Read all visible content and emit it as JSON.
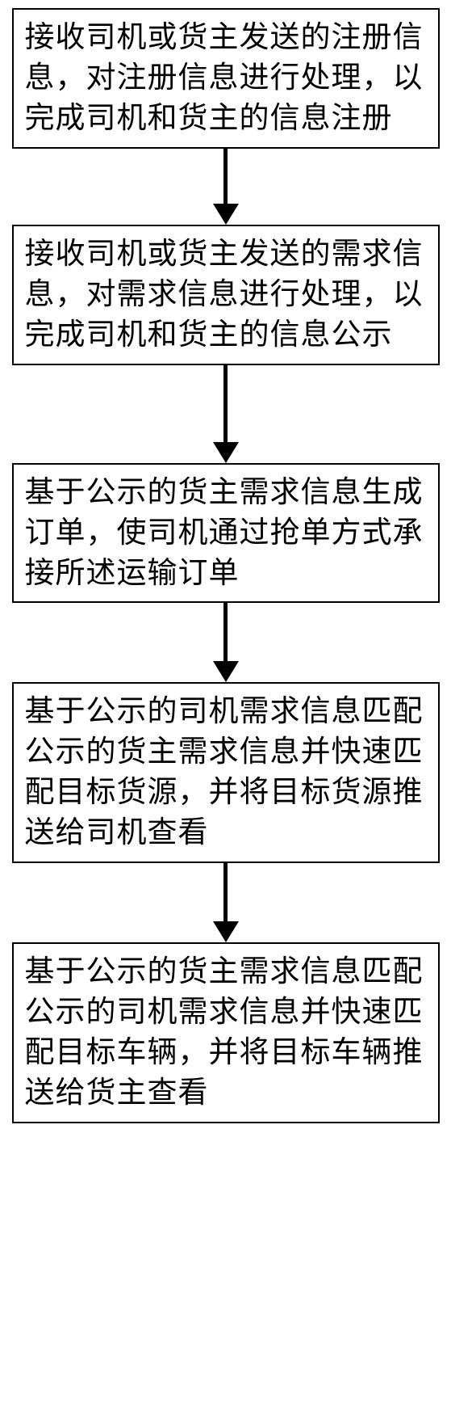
{
  "flowchart": {
    "type": "flowchart",
    "direction": "vertical",
    "background_color": "#ffffff",
    "node_border_color": "#000000",
    "node_border_width": 2,
    "node_fill": "#ffffff",
    "text_color": "#000000",
    "font_size_pt": 28,
    "arrow_color": "#000000",
    "arrow_shaft_width": 5,
    "arrow_head_width": 32,
    "arrow_head_height": 26,
    "nodes": [
      {
        "id": "n1",
        "text": "接收司机或货主发送的注册信息，对注册信息进行处理，以完成司机和货主的信息注册",
        "arrow_shaft_height": 68
      },
      {
        "id": "n2",
        "text": "接收司机或货主发送的需求信息，对需求信息进行处理，以完成司机和货主的信息公示",
        "arrow_shaft_height": 95
      },
      {
        "id": "n3",
        "text": "基于公示的货主需求信息生成订单，使司机通过抢单方式承接所述运输订单",
        "arrow_shaft_height": 72
      },
      {
        "id": "n4",
        "text": "基于公示的司机需求信息匹配公示的货主需求信息并快速匹配目标货源，并将目标货源推送给司机查看",
        "arrow_shaft_height": 72
      },
      {
        "id": "n5",
        "text": "基于公示的货主需求信息匹配公示的司机需求信息并快速匹配目标车辆，并将目标车辆推送给货主查看",
        "arrow_shaft_height": null
      }
    ],
    "edges": [
      {
        "from": "n1",
        "to": "n2"
      },
      {
        "from": "n2",
        "to": "n3"
      },
      {
        "from": "n3",
        "to": "n4"
      },
      {
        "from": "n4",
        "to": "n5"
      }
    ]
  }
}
